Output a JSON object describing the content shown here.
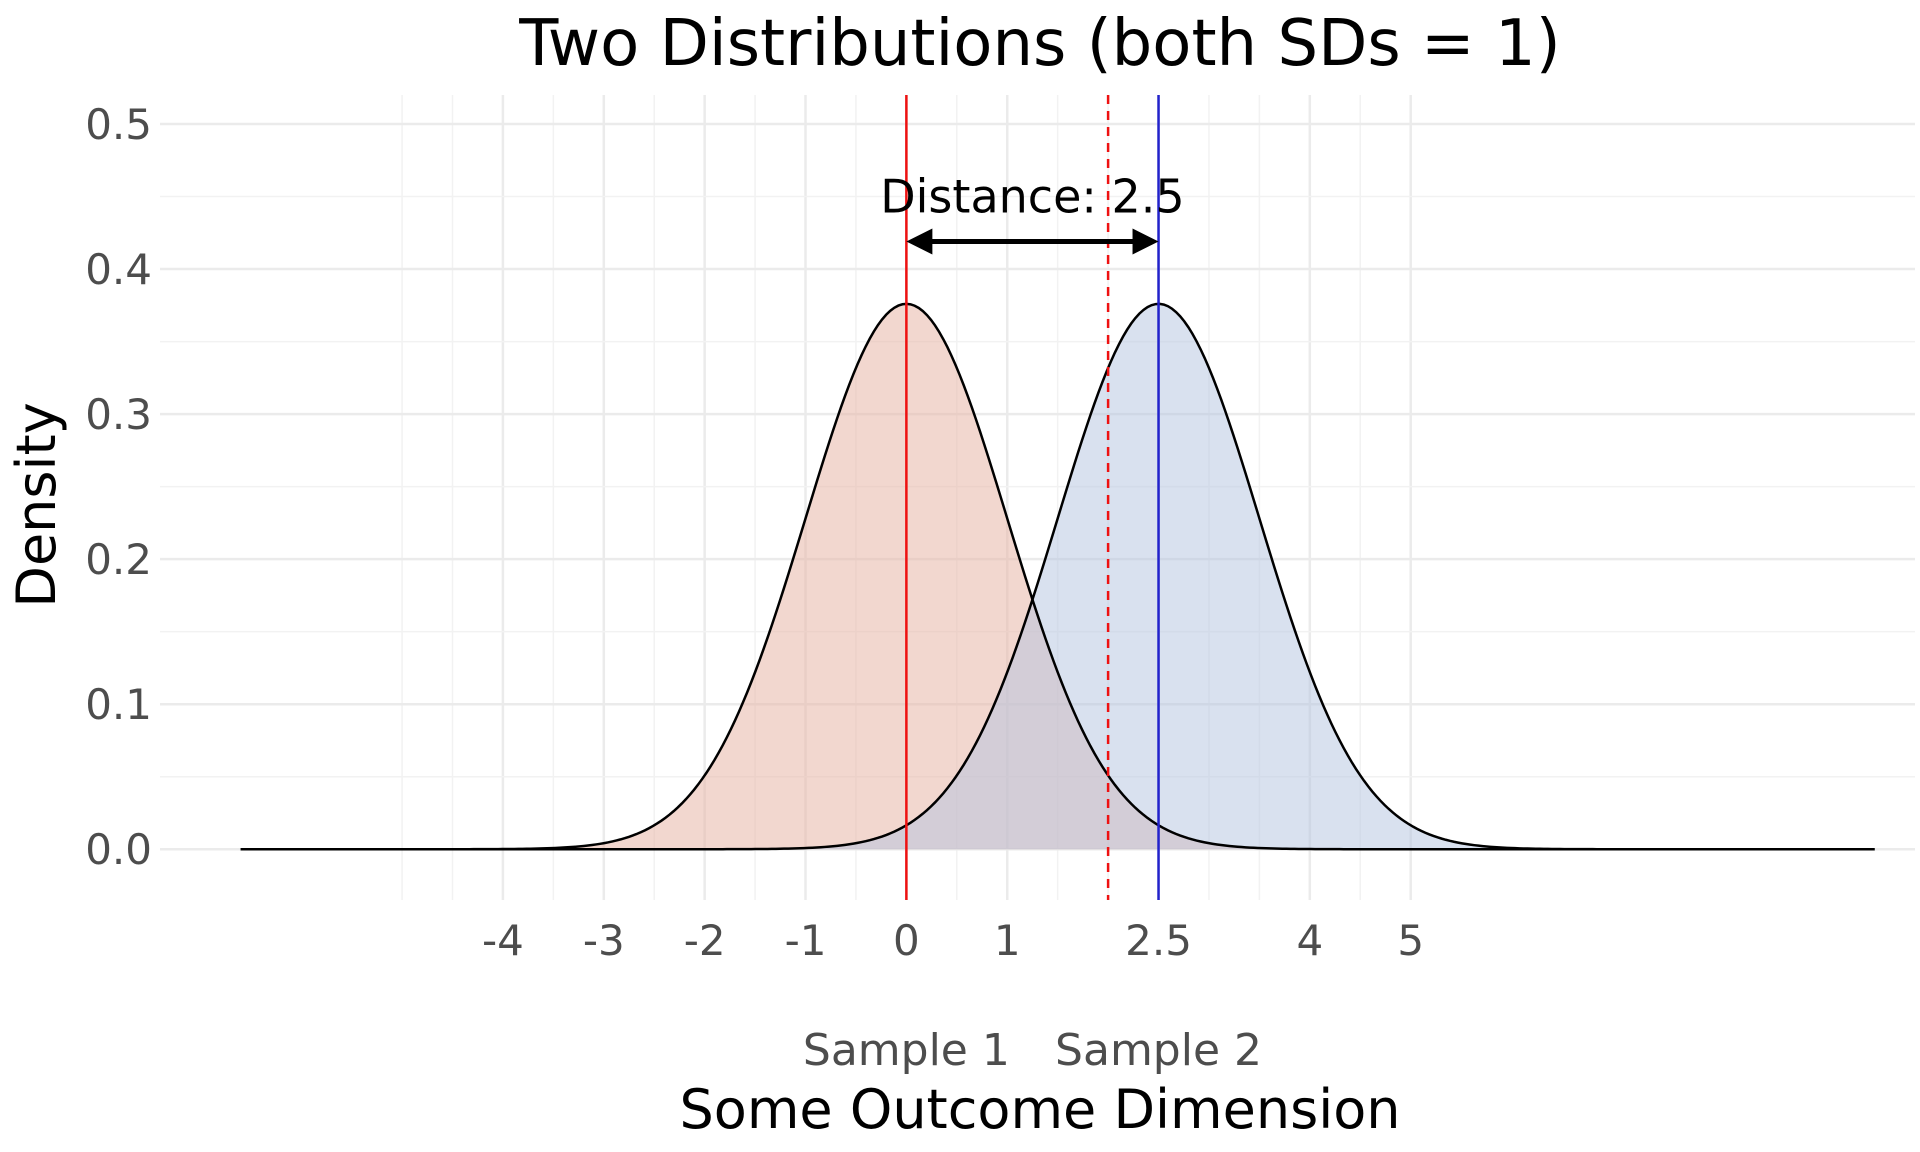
{
  "chart_data": {
    "type": "area",
    "title": "Two Distributions (both SDs = 1)",
    "xlabel": "Some Outcome Dimension",
    "ylabel": "Density",
    "xlim": [
      -7.4,
      10.0
    ],
    "ylim": [
      -0.035,
      0.52
    ],
    "x_ticks": [
      -4,
      -3,
      -2,
      -1,
      0,
      1,
      2.5,
      4,
      5
    ],
    "x_tick_labels": [
      "-4",
      "-3",
      "-2",
      "-1",
      "0",
      "1",
      "2.5",
      "4",
      "5"
    ],
    "x_minor_grid": [
      -5,
      -4.5,
      -3.5,
      -2.5,
      -1.5,
      -0.5,
      0.5,
      1.5,
      2,
      3,
      3.5,
      4.5
    ],
    "y_ticks": [
      0.0,
      0.1,
      0.2,
      0.3,
      0.4,
      0.5
    ],
    "y_tick_labels": [
      "0.0",
      "0.1",
      "0.2",
      "0.3",
      "0.4",
      "0.5"
    ],
    "grid": true,
    "series": [
      {
        "mean": 0,
        "sd": 1,
        "x_range": [
          -6.6,
          9.6
        ],
        "peak": 0.376,
        "fill": "#e8b6a8",
        "fill_opacity": 0.55,
        "mean_line_color": "#ee1111"
      },
      {
        "mean": 2.5,
        "sd": 1,
        "x_range": [
          -6.6,
          9.6
        ],
        "peak": 0.376,
        "fill": "#b4c3e0",
        "fill_opacity": 0.5,
        "mean_line_color": "#2222cc"
      }
    ],
    "midpoint": {
      "x": 2.0,
      "color": "#ee1111",
      "style": "dashed"
    },
    "group_labels": [
      {
        "text": "Sample 1",
        "x": 0
      },
      {
        "text": "Sample 2",
        "x": 2.5
      }
    ],
    "annotation": {
      "text": "Distance: 2.5",
      "text_x": 1.25,
      "text_y": 0.45,
      "arrow_from": 0,
      "arrow_to": 2.5,
      "arrow_y": 0.419
    }
  }
}
